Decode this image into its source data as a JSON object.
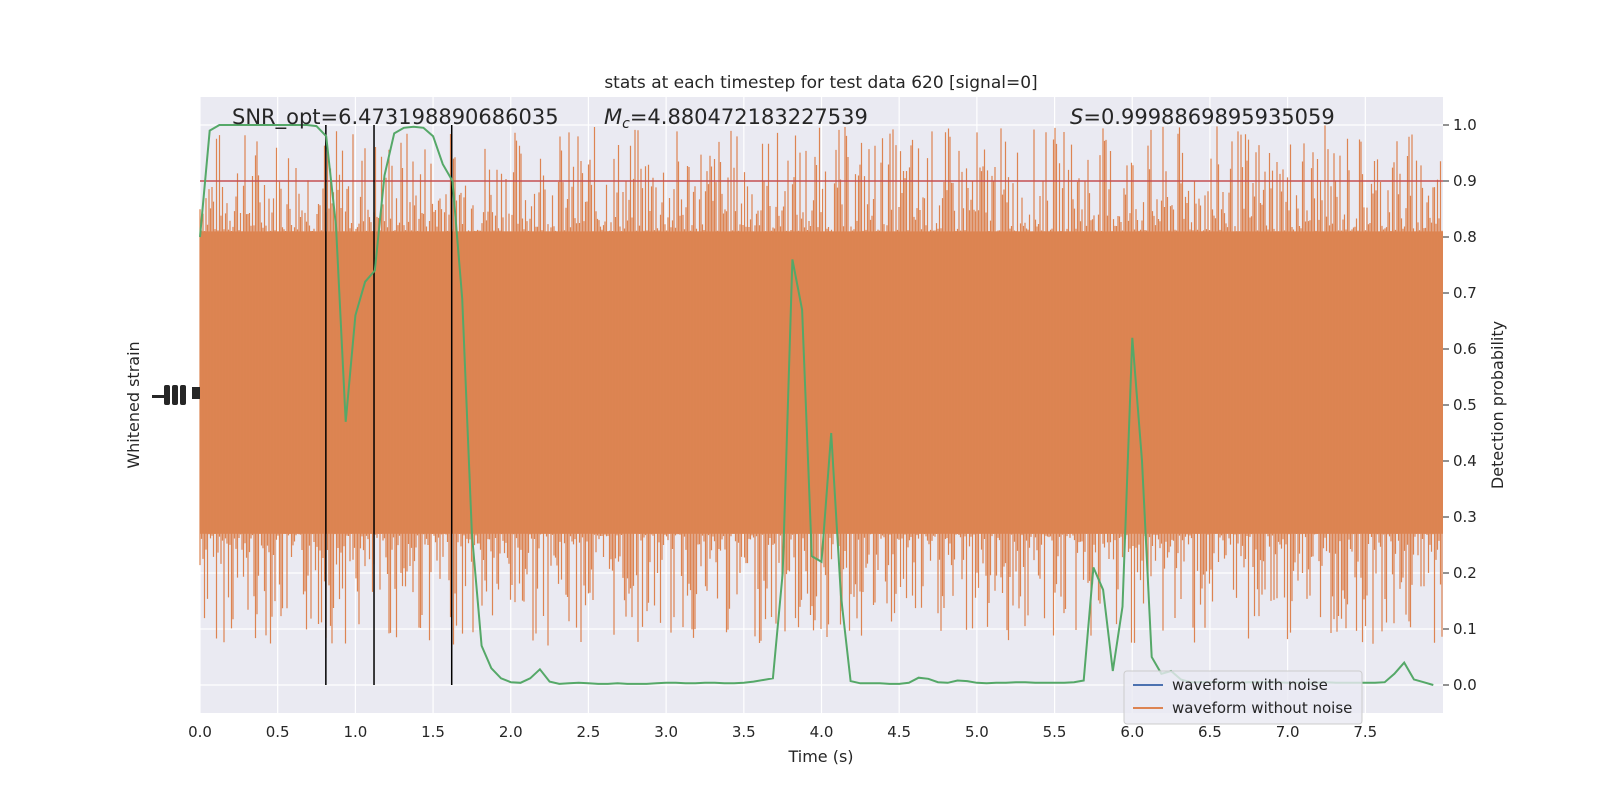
{
  "chart_data": {
    "type": "line",
    "title": "stats at each timestep for test data 620 [signal=0]",
    "xlabel": "Time (s)",
    "ylabel_left": "Whitened strain",
    "ylabel_right": "Detection probability",
    "xlim": [
      0,
      8
    ],
    "ylim_right": [
      -0.05,
      1.05
    ],
    "x_ticks": [
      0.0,
      0.5,
      1.0,
      1.5,
      2.0,
      2.5,
      3.0,
      3.5,
      4.0,
      4.5,
      5.0,
      5.5,
      6.0,
      6.5,
      7.0,
      7.5
    ],
    "x_tick_labels": [
      "0.0",
      "0.5",
      "1.0",
      "1.5",
      "2.0",
      "2.5",
      "3.0",
      "3.5",
      "4.0",
      "4.5",
      "5.0",
      "5.5",
      "6.0",
      "6.5",
      "7.0",
      "7.5"
    ],
    "y_right_ticks": [
      0.0,
      0.1,
      0.2,
      0.3,
      0.4,
      0.5,
      0.6,
      0.7,
      0.8,
      0.9,
      1.0
    ],
    "y_right_tick_labels": [
      "0.0",
      "0.1",
      "0.2",
      "0.3",
      "0.4",
      "0.5",
      "0.6",
      "0.7",
      "0.8",
      "0.9",
      "1.0"
    ],
    "grid": true,
    "legend_position": "lower-right",
    "annotations": {
      "snr": "SNR_opt=6.473198890686035",
      "mc_symbol": "M",
      "mc_sub": "c",
      "mc_value": "=4.880472183227539",
      "s_symbol": "S",
      "s_value": "=0.9998869895935059"
    },
    "threshold": 0.9,
    "detection_lines_x": [
      0.81,
      1.12,
      1.62
    ],
    "series": [
      {
        "name": "waveform with noise",
        "color": "#4c72b0"
      },
      {
        "name": "waveform without noise",
        "color": "#dd8452"
      },
      {
        "color": "#55a868",
        "x": [
          0.0,
          0.0625,
          0.125,
          0.1875,
          0.25,
          0.3125,
          0.375,
          0.4375,
          0.5,
          0.5625,
          0.625,
          0.6875,
          0.75,
          0.8125,
          0.875,
          0.9375,
          1.0,
          1.0625,
          1.125,
          1.1875,
          1.25,
          1.3125,
          1.375,
          1.4375,
          1.5,
          1.5625,
          1.625,
          1.6875,
          1.75,
          1.8125,
          1.875,
          1.9375,
          2.0,
          2.0625,
          2.125,
          2.1875,
          2.25,
          2.3125,
          2.375,
          2.4375,
          2.5,
          2.5625,
          2.625,
          2.6875,
          2.75,
          2.8125,
          2.875,
          2.9375,
          3.0,
          3.0625,
          3.125,
          3.1875,
          3.25,
          3.3125,
          3.375,
          3.4375,
          3.5,
          3.5625,
          3.625,
          3.6875,
          3.75,
          3.8125,
          3.875,
          3.9375,
          4.0,
          4.0625,
          4.125,
          4.1875,
          4.25,
          4.3125,
          4.375,
          4.4375,
          4.5,
          4.5625,
          4.625,
          4.6875,
          4.75,
          4.8125,
          4.875,
          4.9375,
          5.0,
          5.0625,
          5.125,
          5.1875,
          5.25,
          5.3125,
          5.375,
          5.4375,
          5.5,
          5.5625,
          5.625,
          5.6875,
          5.75,
          5.8125,
          5.875,
          5.9375,
          6.0,
          6.0625,
          6.125,
          6.1875,
          6.25,
          6.3125,
          6.375,
          6.4375,
          6.5,
          6.5625,
          6.625,
          6.6875,
          6.75,
          6.8125,
          6.875,
          6.9375,
          7.0,
          7.0625,
          7.125,
          7.1875,
          7.25,
          7.3125,
          7.375,
          7.4375,
          7.5,
          7.5625,
          7.625,
          7.6875,
          7.75,
          7.8125,
          7.875,
          7.9375
        ],
        "values": [
          0.8,
          0.99,
          1.0,
          1.0,
          1.0,
          1.0,
          1.0,
          1.0,
          1.0,
          1.0,
          1.0,
          1.0,
          0.998,
          0.98,
          0.82,
          0.47,
          0.66,
          0.72,
          0.74,
          0.91,
          0.985,
          0.995,
          0.997,
          0.995,
          0.98,
          0.93,
          0.9,
          0.69,
          0.27,
          0.07,
          0.03,
          0.012,
          0.005,
          0.004,
          0.012,
          0.028,
          0.006,
          0.002,
          0.003,
          0.004,
          0.003,
          0.002,
          0.002,
          0.003,
          0.002,
          0.002,
          0.002,
          0.003,
          0.004,
          0.004,
          0.003,
          0.003,
          0.004,
          0.004,
          0.003,
          0.003,
          0.004,
          0.006,
          0.009,
          0.012,
          0.2,
          0.76,
          0.67,
          0.23,
          0.22,
          0.45,
          0.16,
          0.007,
          0.003,
          0.003,
          0.003,
          0.002,
          0.002,
          0.004,
          0.013,
          0.011,
          0.005,
          0.004,
          0.008,
          0.007,
          0.004,
          0.003,
          0.004,
          0.004,
          0.005,
          0.005,
          0.004,
          0.004,
          0.004,
          0.004,
          0.005,
          0.008,
          0.21,
          0.17,
          0.025,
          0.14,
          0.62,
          0.4,
          0.05,
          0.02,
          0.025,
          0.01,
          0.005,
          0.005,
          0.005,
          0.005,
          0.004,
          0.004,
          0.005,
          0.005,
          0.005,
          0.005,
          0.004,
          0.004,
          0.004,
          0.004,
          0.005,
          0.004,
          0.004,
          0.004,
          0.004,
          0.004,
          0.005,
          0.02,
          0.04,
          0.01,
          0.005,
          0.0
        ]
      }
    ],
    "noise_band": {
      "typical_low": 0.27,
      "typical_high": 0.81,
      "spike_low": 0.07,
      "spike_high": 1.0
    }
  }
}
